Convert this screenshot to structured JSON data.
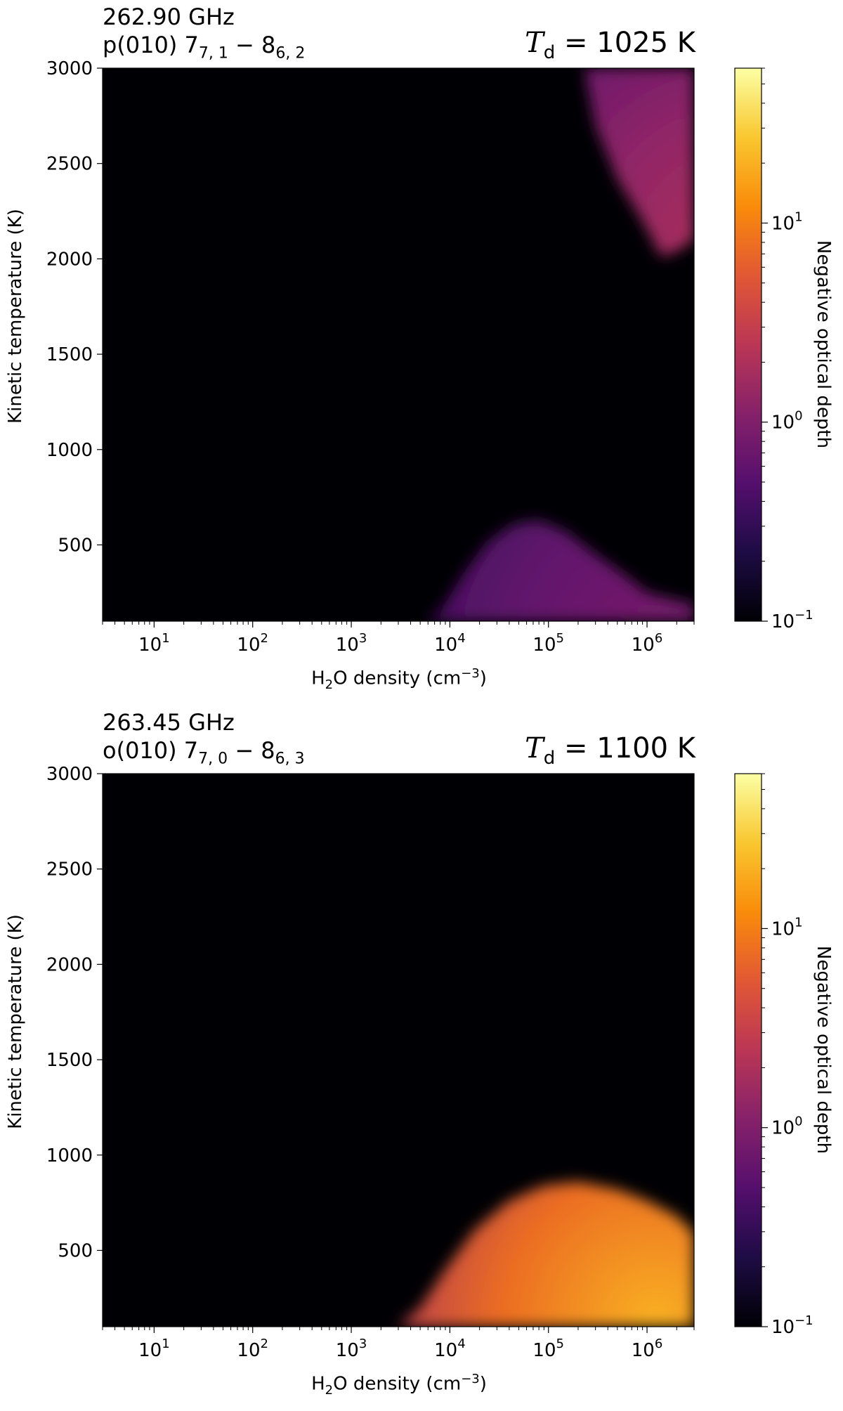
{
  "chart_data": [
    {
      "type": "heatmap",
      "title_line1": "262.90 GHz",
      "title_line2": {
        "prefix": "p(010) 7",
        "sub1": "7, 1",
        "mid": " − 8",
        "sub2": "6, 2"
      },
      "td_label": {
        "var": "T",
        "sub": "d",
        "value": " = 1025 K"
      },
      "xlabel": {
        "pre": "H",
        "sub": "2",
        "mid": "O density (cm",
        "sup": "−3",
        "post": ")"
      },
      "ylabel": "Kinetic temperature (K)",
      "colorbar_label": "Negative optical depth",
      "x_scale": "log",
      "xlim": [
        3,
        3000000
      ],
      "ylim": [
        100,
        3000
      ],
      "yticks": [
        500,
        1000,
        1500,
        2000,
        2500,
        3000
      ],
      "xticks": [
        {
          "base": "10",
          "exp": "1"
        },
        {
          "base": "10",
          "exp": "2"
        },
        {
          "base": "10",
          "exp": "3"
        },
        {
          "base": "10",
          "exp": "4"
        },
        {
          "base": "10",
          "exp": "5"
        },
        {
          "base": "10",
          "exp": "6"
        }
      ],
      "colorbar_scale": "log",
      "colorbar_range": [
        0.1,
        60
      ],
      "colorbar_ticks": [
        {
          "base": "10",
          "exp": "−1"
        },
        {
          "base": "10",
          "exp": "0"
        },
        {
          "base": "10",
          "exp": "1"
        }
      ],
      "colormap": "inferno",
      "regions": [
        {
          "points": [
            [
              5700,
              100
            ],
            [
              8000,
              150
            ],
            [
              14000,
              350
            ],
            [
              25000,
              520
            ],
            [
              45000,
              610
            ],
            [
              80000,
              630
            ],
            [
              150000,
              570
            ],
            [
              300000,
              450
            ],
            [
              600000,
              340
            ],
            [
              1000000,
              250
            ],
            [
              2000000,
              210
            ],
            [
              3000000,
              190
            ],
            [
              3000000,
              100
            ]
          ],
          "peak": 0.9
        },
        {
          "points": [
            [
              230000,
              3000
            ],
            [
              300000,
              2700
            ],
            [
              500000,
              2420
            ],
            [
              900000,
              2200
            ],
            [
              1400000,
              2010
            ],
            [
              2000000,
              2040
            ],
            [
              3000000,
              2100
            ],
            [
              3000000,
              3000
            ]
          ],
          "peak": 2.2
        }
      ]
    },
    {
      "type": "heatmap",
      "title_line1": "263.45 GHz",
      "title_line2": {
        "prefix": "o(010) 7",
        "sub1": "7, 0",
        "mid": " − 8",
        "sub2": "6, 3"
      },
      "td_label": {
        "var": "T",
        "sub": "d",
        "value": " = 1100 K"
      },
      "xlabel": {
        "pre": "H",
        "sub": "2",
        "mid": "O density (cm",
        "sup": "−3",
        "post": ")"
      },
      "ylabel": "Kinetic temperature (K)",
      "colorbar_label": "Negative optical depth",
      "x_scale": "log",
      "xlim": [
        3,
        3000000
      ],
      "ylim": [
        100,
        3000
      ],
      "yticks": [
        500,
        1000,
        1500,
        2000,
        2500,
        3000
      ],
      "xticks": [
        {
          "base": "10",
          "exp": "1"
        },
        {
          "base": "10",
          "exp": "2"
        },
        {
          "base": "10",
          "exp": "3"
        },
        {
          "base": "10",
          "exp": "4"
        },
        {
          "base": "10",
          "exp": "5"
        },
        {
          "base": "10",
          "exp": "6"
        }
      ],
      "colorbar_scale": "log",
      "colorbar_range": [
        0.1,
        60
      ],
      "colorbar_ticks": [
        {
          "base": "10",
          "exp": "−1"
        },
        {
          "base": "10",
          "exp": "0"
        },
        {
          "base": "10",
          "exp": "1"
        }
      ],
      "colormap": "inferno",
      "regions": [
        {
          "points": [
            [
              3000,
              100
            ],
            [
              5000,
              200
            ],
            [
              9000,
              400
            ],
            [
              18000,
              610
            ],
            [
              40000,
              760
            ],
            [
              90000,
              840
            ],
            [
              200000,
              860
            ],
            [
              500000,
              820
            ],
            [
              1000000,
              760
            ],
            [
              2000000,
              680
            ],
            [
              3000000,
              590
            ],
            [
              3000000,
              100
            ]
          ],
          "peak": 20
        }
      ]
    }
  ]
}
